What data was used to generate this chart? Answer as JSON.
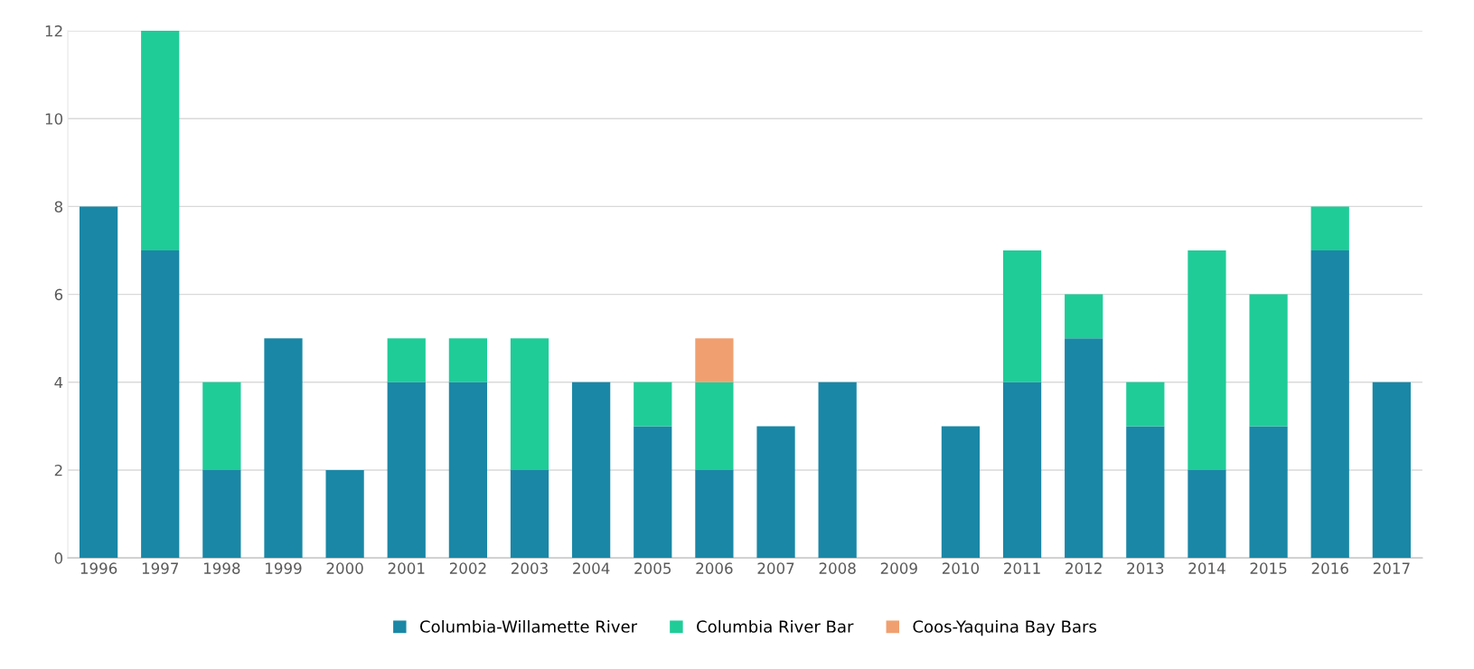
{
  "chart_data": {
    "type": "bar",
    "stacked": true,
    "categories": [
      "1996",
      "1997",
      "1998",
      "1999",
      "2000",
      "2001",
      "2002",
      "2003",
      "2004",
      "2005",
      "2006",
      "2007",
      "2008",
      "2009",
      "2010",
      "2011",
      "2012",
      "2013",
      "2014",
      "2015",
      "2016",
      "2017"
    ],
    "series": [
      {
        "name": "Columbia-Willamette River",
        "color": "#1a87a6",
        "values": [
          8,
          7,
          2,
          5,
          2,
          4,
          4,
          2,
          4,
          3,
          2,
          3,
          4,
          null,
          3,
          4,
          5,
          3,
          2,
          3,
          7,
          4
        ]
      },
      {
        "name": "Columbia River Bar",
        "color": "#1fcc98",
        "values": [
          null,
          5,
          2,
          null,
          null,
          1,
          1,
          3,
          null,
          1,
          2,
          null,
          null,
          null,
          null,
          3,
          1,
          1,
          5,
          3,
          1,
          null
        ]
      },
      {
        "name": "Coos-Yaquina Bay Bars",
        "color": "#f0a070",
        "values": [
          null,
          null,
          null,
          null,
          null,
          null,
          null,
          null,
          null,
          null,
          1,
          null,
          null,
          null,
          null,
          null,
          null,
          null,
          null,
          null,
          null,
          null
        ]
      }
    ],
    "ylim": [
      0,
      12
    ],
    "yticks": [
      0,
      2,
      4,
      6,
      8,
      10,
      12
    ],
    "grid": "y",
    "legend": "bottom"
  }
}
